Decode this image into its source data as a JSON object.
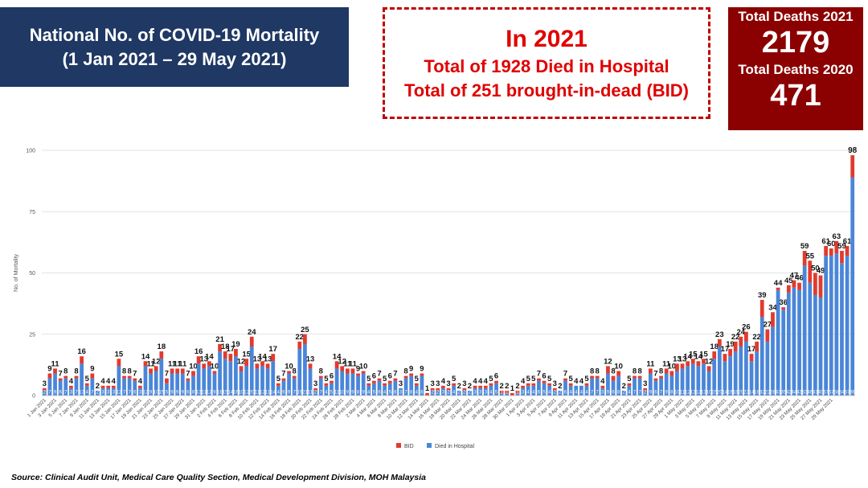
{
  "header": {
    "title_line1": "National No. of COVID-19 Mortality",
    "title_line2": "(1 Jan 2021 – 29 May 2021)"
  },
  "summary": {
    "line1": "In 2021",
    "line2": "Total of 1928 Died in Hospital",
    "line3": "Total of 251 brought-in-dead (BID)"
  },
  "totals": {
    "label_2021": "Total Deaths 2021",
    "value_2021": "2179",
    "label_2020": "Total Deaths 2020",
    "value_2020": "471"
  },
  "source": "Source: Clinical Audit Unit, Medical Care Quality Section, Medical Development Division, MOH Malaysia",
  "colors": {
    "bid": "#e03b2e",
    "hospital": "#4a86d8",
    "title_bg": "#1f3864",
    "totals_bg": "#8b0000"
  },
  "chart_data": {
    "type": "bar",
    "stacked": true,
    "ylabel": "No. of Mortality",
    "ylim": [
      0,
      100
    ],
    "yticks": [
      0,
      25,
      50,
      75,
      100
    ],
    "grid": true,
    "legend_position": "bottom",
    "x_start": "2021-01-01",
    "x_end": "2021-05-29",
    "x_tick_labels": [
      "1 Jan 2021",
      "3 Jan 2021",
      "5 Jan 2021",
      "7 Jan 2021",
      "9 Jan 2021",
      "11 Jan 2021",
      "13 Jan 2021",
      "15 Jan 2021",
      "17 Jan 2021",
      "19 Jan 2021",
      "21 Jan 2021",
      "23 Jan 2021",
      "25 Jan 2021",
      "27 Jan 2021",
      "29 Jan 2021",
      "31 Jan 2021",
      "2 Feb 2021",
      "4 Feb 2021",
      "6 Feb 2021",
      "8 Feb 2021",
      "10 Feb 2021",
      "12 Feb 2021",
      "14 Feb 2021",
      "16 Feb 2021",
      "18 Feb 2021",
      "20 Feb 2021",
      "22 Feb 2021",
      "24 Feb 2021",
      "26 Feb 2021",
      "28 Feb 2021",
      "2 Mar 2021",
      "4 Mar 2021",
      "6 Mar 2021",
      "8 Mar 2021",
      "10 Mar 2021",
      "12 Mar 2021",
      "14 Mar 2021",
      "16 Mar 2021",
      "18 Mar 2021",
      "20 Mar 2021",
      "22 Mar 2021",
      "24 Mar 2021",
      "26 Mar 2021",
      "28 Mar 2021",
      "30 Mar 2021",
      "1 Apr 2021",
      "3 Apr 2021",
      "5 Apr 2021",
      "7 Apr 2021",
      "9 Apr 2021",
      "11 Apr 2021",
      "13 Apr 2021",
      "15 Apr 2021",
      "17 Apr 2021",
      "19 Apr 2021",
      "21 Apr 2021",
      "23 Apr 2021",
      "25 Apr 2021",
      "27 Apr 2021",
      "29 Apr 2021",
      "1 May 2021",
      "3 May 2021",
      "5 May 2021",
      "7 May 2021",
      "9 May 2021",
      "11 May 2021",
      "13 May 2021",
      "15 May 2021",
      "17 May 2021",
      "19 May 2021",
      "21 May 2021",
      "23 May 2021",
      "25 May 2021",
      "27 May 2021",
      "29 May 2021"
    ],
    "totals": [
      3,
      9,
      11,
      7,
      8,
      4,
      8,
      16,
      5,
      9,
      2,
      4,
      4,
      4,
      15,
      8,
      8,
      7,
      4,
      14,
      11,
      12,
      18,
      7,
      11,
      11,
      11,
      7,
      10,
      16,
      13,
      14,
      10,
      21,
      18,
      17,
      19,
      12,
      15,
      24,
      13,
      14,
      13,
      17,
      5,
      7,
      10,
      8,
      22,
      25,
      13,
      3,
      8,
      5,
      6,
      14,
      12,
      11,
      11,
      9,
      10,
      5,
      6,
      7,
      5,
      6,
      7,
      3,
      8,
      9,
      5,
      9,
      1,
      3,
      3,
      4,
      3,
      5,
      2,
      3,
      2,
      4,
      4,
      4,
      5,
      6,
      2,
      2,
      1,
      2,
      4,
      5,
      5,
      7,
      6,
      5,
      3,
      2,
      7,
      5,
      4,
      4,
      5,
      8,
      8,
      4,
      12,
      8,
      10,
      2,
      5,
      8,
      8,
      3,
      11,
      7,
      8,
      11,
      10,
      13,
      13,
      14,
      15,
      14,
      15,
      12,
      18,
      23,
      17,
      19,
      22,
      24,
      26,
      17,
      22,
      39,
      27,
      34,
      44,
      36,
      45,
      47,
      46,
      59,
      55,
      50,
      49,
      61,
      60,
      63,
      59,
      61,
      98
    ],
    "series": [
      {
        "name": "BID",
        "values": [
          1,
          2,
          2,
          1,
          1,
          1,
          1,
          3,
          1,
          2,
          0,
          1,
          1,
          1,
          3,
          1,
          1,
          1,
          1,
          2,
          2,
          2,
          3,
          2,
          2,
          2,
          2,
          1,
          2,
          3,
          2,
          2,
          1,
          3,
          3,
          3,
          3,
          2,
          3,
          4,
          2,
          2,
          2,
          3,
          1,
          1,
          1,
          1,
          3,
          4,
          2,
          1,
          1,
          1,
          1,
          3,
          2,
          2,
          2,
          1,
          1,
          1,
          1,
          1,
          1,
          1,
          1,
          0,
          1,
          1,
          1,
          1,
          1,
          1,
          1,
          1,
          1,
          1,
          0,
          1,
          0,
          1,
          1,
          1,
          1,
          1,
          1,
          1,
          1,
          1,
          1,
          1,
          1,
          1,
          1,
          1,
          1,
          0,
          1,
          1,
          0,
          0,
          1,
          1,
          1,
          1,
          3,
          2,
          2,
          0,
          1,
          1,
          1,
          1,
          2,
          1,
          1,
          2,
          2,
          3,
          2,
          2,
          2,
          2,
          2,
          2,
          3,
          3,
          3,
          3,
          4,
          4,
          4,
          3,
          4,
          7,
          5,
          6,
          1,
          1,
          3,
          3,
          3,
          6,
          9,
          9,
          9,
          4,
          3,
          5,
          5,
          4,
          9
        ]
      },
      {
        "name": "Died in Hospital",
        "values": [
          2,
          7,
          9,
          6,
          7,
          3,
          7,
          13,
          4,
          7,
          2,
          3,
          3,
          3,
          12,
          7,
          7,
          6,
          3,
          12,
          9,
          10,
          15,
          5,
          9,
          9,
          9,
          6,
          8,
          13,
          11,
          12,
          9,
          18,
          15,
          14,
          16,
          10,
          12,
          20,
          11,
          12,
          11,
          14,
          4,
          6,
          9,
          7,
          19,
          21,
          11,
          2,
          7,
          4,
          5,
          11,
          10,
          9,
          9,
          8,
          9,
          4,
          5,
          6,
          4,
          5,
          6,
          3,
          7,
          8,
          4,
          8,
          0,
          2,
          2,
          3,
          2,
          4,
          2,
          2,
          2,
          3,
          3,
          3,
          4,
          5,
          1,
          1,
          0,
          1,
          3,
          4,
          4,
          6,
          5,
          4,
          2,
          2,
          6,
          4,
          4,
          4,
          4,
          7,
          7,
          3,
          9,
          6,
          8,
          2,
          4,
          7,
          7,
          2,
          9,
          6,
          7,
          9,
          8,
          10,
          11,
          12,
          13,
          12,
          13,
          10,
          15,
          20,
          14,
          16,
          18,
          20,
          22,
          14,
          18,
          32,
          22,
          28,
          43,
          35,
          42,
          44,
          43,
          53,
          46,
          41,
          40,
          57,
          57,
          58,
          54,
          57,
          89
        ]
      }
    ]
  }
}
